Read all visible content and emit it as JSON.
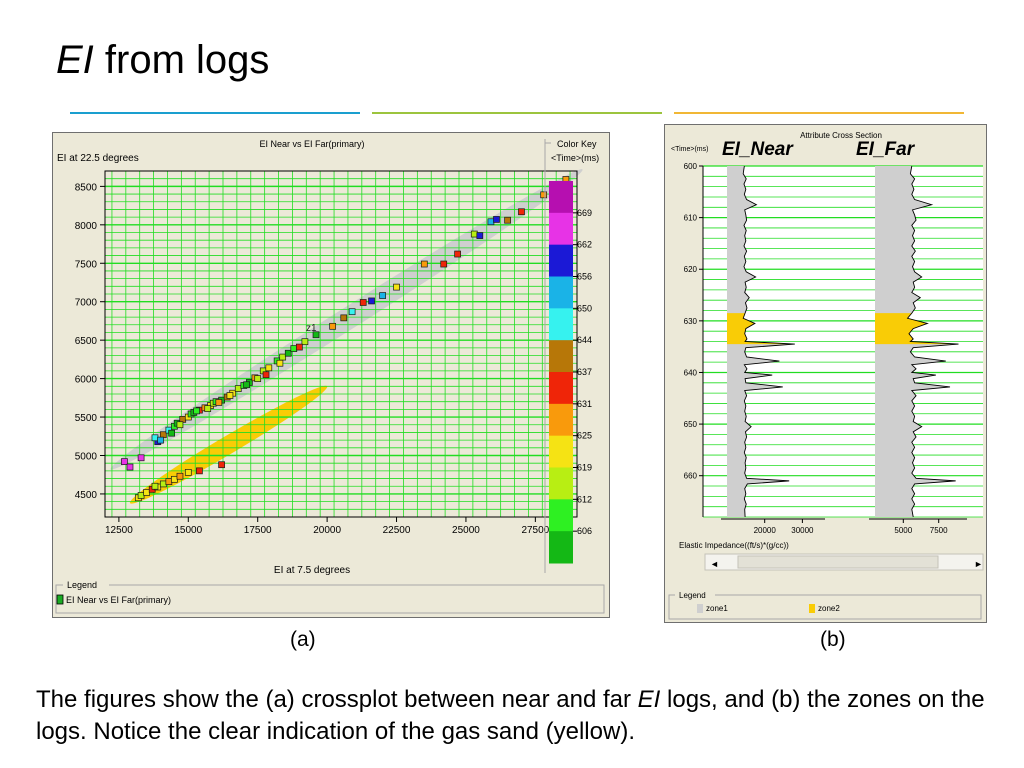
{
  "slide": {
    "title_italic": "EI",
    "title_rest": " from logs",
    "caption_a": "(a)",
    "caption_b": "(b)",
    "text_part1": "The figures show the (a) crossplot between near and far ",
    "text_italic": "EI",
    "text_part2": " logs, and (b) the zones on the logs.  Notice the clear indication of the gas sand (yellow).",
    "rule_colors": [
      "#1a9fcf",
      "#9cc43d",
      "#f1b735"
    ]
  },
  "crossplot": {
    "legend_title": "Legend",
    "legend_item": "EI Near vs EI Far(primary)",
    "color_key_title": "Color Key",
    "color_key_subtitle": "<Time>(ms)",
    "color_key_colors": [
      "#b60fb0",
      "#e733e6",
      "#1b19d6",
      "#1ab3e7",
      "#36f2ef",
      "#b77708",
      "#ef2508",
      "#f99a0c",
      "#f5e314",
      "#b8ee13",
      "#2ef022",
      "#14b815"
    ],
    "color_key_labels": [
      "669",
      "662",
      "656",
      "650",
      "644",
      "637",
      "631",
      "625",
      "619",
      "612",
      "606"
    ],
    "zone_labels": [
      "z1"
    ],
    "zone_colors": {
      "zone1": "#cfcfcf",
      "zone2": "#f9cc06"
    }
  },
  "chart_data": [
    {
      "type": "scatter",
      "title": "EI Near vs EI Far(primary)",
      "xlabel": "EI at 7.5 degrees",
      "ylabel": "EI at 22.5 degrees",
      "xlim": [
        12000,
        29000
      ],
      "ylim": [
        4200,
        8700
      ],
      "xticks": [
        12500,
        15000,
        17500,
        20000,
        22500,
        25000,
        27500
      ],
      "yticks": [
        4500,
        5000,
        5500,
        6000,
        6500,
        7000,
        7500,
        8000,
        8500
      ],
      "grid": true,
      "series": [
        {
          "name": "zone1",
          "x": [
            12700,
            12900,
            13900,
            13800,
            14100,
            14300,
            14500,
            14600,
            14800,
            15000,
            15100,
            15200,
            15400,
            15600,
            15800,
            15900,
            16000,
            16200,
            16400,
            16600,
            16800,
            17000,
            17200,
            17400,
            17700,
            17900,
            18200,
            18400,
            18600,
            18800,
            19200,
            19600,
            20200,
            20600,
            20900,
            21300,
            22000,
            22500,
            23500,
            24200,
            24700,
            25300,
            25500,
            25900,
            26100,
            26500,
            27000,
            27800,
            28600,
            14000,
            14400,
            14700,
            15300,
            15700,
            16100,
            16500,
            17100,
            17500,
            17800,
            18300,
            19000,
            21600,
            13300
          ],
          "y": [
            4920,
            4850,
            5180,
            5230,
            5270,
            5330,
            5380,
            5420,
            5470,
            5500,
            5540,
            5560,
            5590,
            5620,
            5650,
            5680,
            5700,
            5720,
            5760,
            5810,
            5870,
            5910,
            5950,
            6010,
            6100,
            6140,
            6230,
            6280,
            6330,
            6390,
            6480,
            6570,
            6680,
            6790,
            6870,
            6990,
            7080,
            7190,
            7490,
            7490,
            7620,
            7880,
            7860,
            8040,
            8070,
            8060,
            8170,
            8390,
            8590,
            5200,
            5290,
            5400,
            5580,
            5610,
            5690,
            5780,
            5920,
            6000,
            6050,
            6200,
            6410,
            7010,
            4970
          ],
          "t": [
            667,
            669,
            662,
            650,
            644,
            650,
            612,
            606,
            644,
            625,
            612,
            606,
            637,
            631,
            625,
            619,
            612,
            606,
            644,
            625,
            619,
            612,
            606,
            631,
            619,
            625,
            612,
            619,
            606,
            612,
            619,
            606,
            631,
            644,
            650,
            637,
            656,
            625,
            631,
            637,
            637,
            619,
            662,
            656,
            662,
            644,
            637,
            631,
            631,
            656,
            606,
            619,
            612,
            619,
            631,
            625,
            606,
            619,
            637,
            625,
            637,
            662,
            669
          ]
        },
        {
          "name": "zone2",
          "x": [
            13200,
            13300,
            13500,
            13700,
            13900,
            14100,
            14300,
            14500,
            14700,
            15000,
            15400,
            16200,
            13800
          ],
          "y": [
            4450,
            4480,
            4520,
            4560,
            4590,
            4630,
            4660,
            4690,
            4730,
            4780,
            4800,
            4880,
            4600
          ],
          "t": [
            625,
            619,
            625,
            637,
            625,
            619,
            631,
            625,
            631,
            625,
            637,
            637,
            619
          ]
        }
      ]
    },
    {
      "type": "line",
      "title": "Attribute Cross Section",
      "ylabel": "<Time>(ms)",
      "xlabel": "Elastic Impedance((ft/s)*(g/cc))",
      "ylim": [
        600,
        668
      ],
      "yticks": [
        600,
        610,
        620,
        630,
        640,
        650,
        660
      ],
      "legend": {
        "title": "Legend",
        "items": [
          "zone1",
          "zone2"
        ]
      },
      "tracks": [
        {
          "name": "EI_Near",
          "xlim": [
            10000,
            36000
          ],
          "xticks": [
            20000,
            30000
          ],
          "zone2_range": [
            628.5,
            634.5
          ],
          "points": [
            [
              600,
              14600
            ],
            [
              601.5,
              14300
            ],
            [
              602.5,
              15100
            ],
            [
              603.5,
              14500
            ],
            [
              604.5,
              15000
            ],
            [
              605.5,
              14600
            ],
            [
              606.5,
              15200
            ],
            [
              607.5,
              17800
            ],
            [
              608.5,
              14700
            ],
            [
              609.5,
              15000
            ],
            [
              610.5,
              15200
            ],
            [
              611.5,
              14500
            ],
            [
              612.5,
              15100
            ],
            [
              613.5,
              14700
            ],
            [
              614.5,
              15000
            ],
            [
              615.5,
              14500
            ],
            [
              616.5,
              15200
            ],
            [
              617.5,
              14600
            ],
            [
              618.5,
              15000
            ],
            [
              619.5,
              14500
            ],
            [
              620.5,
              15100
            ],
            [
              621.5,
              17600
            ],
            [
              622.5,
              14800
            ],
            [
              623.5,
              15100
            ],
            [
              624.5,
              14700
            ],
            [
              625.5,
              15900
            ],
            [
              626.5,
              14900
            ],
            [
              627.5,
              15300
            ],
            [
              628.5,
              14800
            ],
            [
              629.5,
              14300
            ],
            [
              630.5,
              17400
            ],
            [
              631.5,
              15000
            ],
            [
              632.5,
              14700
            ],
            [
              633.5,
              15300
            ],
            [
              634,
              14800
            ],
            [
              634.5,
              28000
            ],
            [
              635.2,
              15000
            ],
            [
              636,
              14700
            ],
            [
              637,
              15200
            ],
            [
              637.8,
              23900
            ],
            [
              638.5,
              14600
            ],
            [
              639.3,
              15300
            ],
            [
              640,
              14700
            ],
            [
              640.5,
              22000
            ],
            [
              641.2,
              14800
            ],
            [
              642,
              15000
            ],
            [
              642.8,
              24800
            ],
            [
              643.5,
              14700
            ],
            [
              644.5,
              15200
            ],
            [
              645.5,
              14600
            ],
            [
              646.5,
              15000
            ],
            [
              647.5,
              14700
            ],
            [
              648.5,
              15100
            ],
            [
              649.5,
              14800
            ],
            [
              650.5,
              16400
            ],
            [
              651.5,
              14900
            ],
            [
              652.5,
              15200
            ],
            [
              653.5,
              14700
            ],
            [
              654.5,
              15000
            ],
            [
              655.5,
              14600
            ],
            [
              656.5,
              15100
            ],
            [
              657.5,
              14800
            ],
            [
              658.5,
              15000
            ],
            [
              659.5,
              14700
            ],
            [
              660.5,
              15200
            ],
            [
              661,
              26500
            ],
            [
              661.6,
              15400
            ],
            [
              662.5,
              14700
            ],
            [
              663.5,
              15000
            ],
            [
              664.5,
              14600
            ],
            [
              665.5,
              15100
            ],
            [
              666.5,
              14700
            ],
            [
              668,
              14800
            ]
          ]
        },
        {
          "name": "EI_Far",
          "xlim": [
            3000,
            9500
          ],
          "xticks": [
            5000,
            7500
          ],
          "zone2_range": [
            628.5,
            634.5
          ],
          "points": [
            [
              600,
              5600
            ],
            [
              601.5,
              5500
            ],
            [
              602.5,
              5800
            ],
            [
              603.5,
              5600
            ],
            [
              604.5,
              5750
            ],
            [
              605.5,
              5600
            ],
            [
              606.5,
              5800
            ],
            [
              607.5,
              7000
            ],
            [
              608.5,
              5650
            ],
            [
              609.5,
              5800
            ],
            [
              610.5,
              5900
            ],
            [
              611.5,
              5600
            ],
            [
              612.5,
              5800
            ],
            [
              613.5,
              5650
            ],
            [
              614.5,
              5800
            ],
            [
              615.5,
              5600
            ],
            [
              616.5,
              5850
            ],
            [
              617.5,
              5600
            ],
            [
              618.5,
              5800
            ],
            [
              619.5,
              5650
            ],
            [
              620.5,
              5800
            ],
            [
              621.5,
              6300
            ],
            [
              622.5,
              5700
            ],
            [
              623.5,
              5800
            ],
            [
              624.5,
              5600
            ],
            [
              625.5,
              6200
            ],
            [
              626.5,
              5700
            ],
            [
              627.5,
              5850
            ],
            [
              628.5,
              5600
            ],
            [
              629.5,
              5300
            ],
            [
              630.5,
              6700
            ],
            [
              631.5,
              5700
            ],
            [
              632.5,
              5400
            ],
            [
              633.5,
              5700
            ],
            [
              634,
              5500
            ],
            [
              634.5,
              8900
            ],
            [
              635.2,
              5700
            ],
            [
              636,
              5500
            ],
            [
              637,
              5800
            ],
            [
              637.8,
              8000
            ],
            [
              638.5,
              5600
            ],
            [
              639.3,
              5900
            ],
            [
              640,
              5600
            ],
            [
              640.5,
              7300
            ],
            [
              641.2,
              5700
            ],
            [
              642,
              5800
            ],
            [
              642.8,
              8300
            ],
            [
              643.5,
              5600
            ],
            [
              644.5,
              5900
            ],
            [
              645.5,
              5600
            ],
            [
              646.5,
              5800
            ],
            [
              647.5,
              5600
            ],
            [
              648.5,
              5800
            ],
            [
              649.5,
              5700
            ],
            [
              650.5,
              6300
            ],
            [
              651.5,
              5700
            ],
            [
              652.5,
              5900
            ],
            [
              653.5,
              5600
            ],
            [
              654.5,
              5800
            ],
            [
              655.5,
              5600
            ],
            [
              656.5,
              5800
            ],
            [
              657.5,
              5650
            ],
            [
              658.5,
              5800
            ],
            [
              659.5,
              5600
            ],
            [
              660.5,
              5900
            ],
            [
              661,
              8700
            ],
            [
              661.6,
              5800
            ],
            [
              662.5,
              5600
            ],
            [
              663.5,
              5800
            ],
            [
              664.5,
              5600
            ],
            [
              665.5,
              5800
            ],
            [
              666.5,
              5600
            ],
            [
              668,
              5700
            ]
          ]
        }
      ]
    }
  ]
}
